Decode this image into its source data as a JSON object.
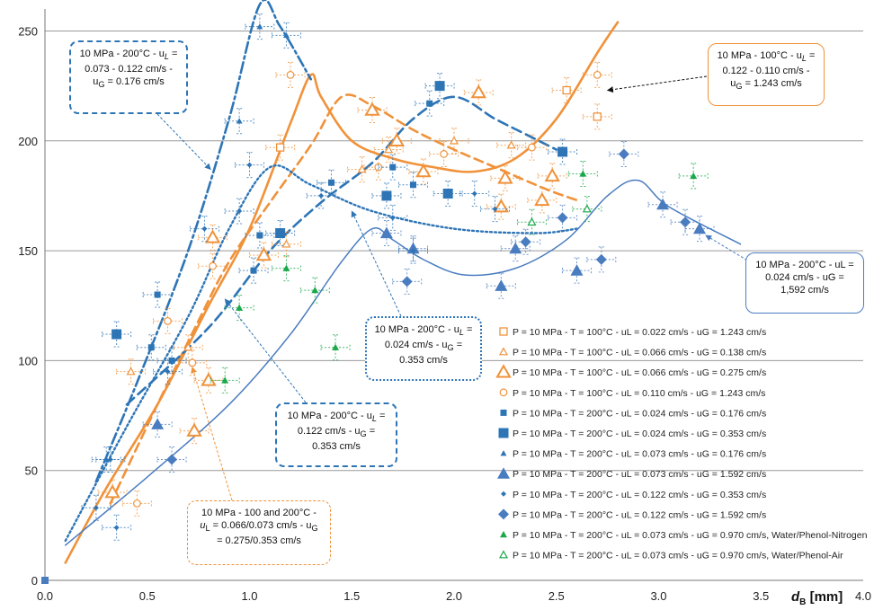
{
  "chart_data": {
    "type": "scatter",
    "xlabel": "d_B [mm]",
    "xlabel_main": "d",
    "xlabel_sub": "B",
    "xlabel_unit": " [mm]",
    "xlim": [
      0,
      4.0
    ],
    "ylim": [
      0,
      260
    ],
    "x_ticks": [
      "0.0",
      "0.5",
      "1.0",
      "1.5",
      "2.0",
      "2.5",
      "3.0",
      "3.5",
      "4.0"
    ],
    "y_ticks": [
      "0",
      "50",
      "100",
      "150",
      "200",
      "250"
    ],
    "grid": "horizontal",
    "legend_position": "right",
    "colors": {
      "orange": "#f0923a",
      "blue": "#2e75b6",
      "green": "#1aa84a",
      "mid_blue": "#4a7cc0"
    },
    "series": [
      {
        "name": "P = 10 MPa - T = 100°C - uL = 0.022 cm/s - uG = 1.243 cm/s",
        "marker": "square-open",
        "color": "#f0923a",
        "x": [
          1.15,
          2.55,
          2.7
        ],
        "y": [
          197,
          223,
          211
        ]
      },
      {
        "name": "P = 10 MPa - T = 100°C - uL = 0.066 cm/s - uG = 0.138 cm/s",
        "marker": "triangle-open-small",
        "color": "#f0923a",
        "x": [
          0.42,
          0.7,
          1.18,
          1.55,
          1.68,
          2.0,
          2.28
        ],
        "y": [
          95,
          106,
          153,
          187,
          196,
          200,
          198
        ]
      },
      {
        "name": "P = 10 MPa - T = 100°C - uL = 0.066 cm/s - uG = 0.275 cm/s",
        "marker": "triangle-open-large",
        "color": "#f0923a",
        "x": [
          0.33,
          0.73,
          0.8,
          0.82,
          1.07,
          1.6,
          1.72,
          1.85,
          2.12,
          2.23,
          2.25,
          2.43,
          2.48
        ],
        "y": [
          40,
          68,
          91,
          156,
          148,
          214,
          200,
          186,
          222,
          170,
          183,
          173,
          184
        ]
      },
      {
        "name": "P = 10 MPa - T = 100°C - uL = 0.110 cm/s - uG = 1.243 cm/s",
        "marker": "circle-open",
        "color": "#f0923a",
        "x": [
          0.45,
          0.6,
          0.72,
          0.82,
          1.2,
          1.63,
          1.95,
          2.38,
          2.7
        ],
        "y": [
          35,
          118,
          99,
          143,
          230,
          188,
          194,
          197,
          230
        ]
      },
      {
        "name": "P = 10 MPa - T = 200°C - uL = 0.024 cm/s - uG = 0.176 cm/s",
        "marker": "square-filled-small",
        "color": "#2e75b6",
        "x": [
          0.52,
          0.55,
          0.62,
          1.02,
          1.05,
          1.4,
          1.7,
          1.8,
          1.88
        ],
        "y": [
          106,
          130,
          100,
          141,
          157,
          181,
          188,
          180,
          217
        ]
      },
      {
        "name": "P = 10 MPa - T = 200°C - uL = 0.024 cm/s - uG = 0.353 cm/s",
        "marker": "square-filled-large",
        "color": "#2e75b6",
        "x": [
          0.35,
          1.15,
          1.67,
          1.93,
          1.97,
          2.53
        ],
        "y": [
          112,
          158,
          175,
          225,
          176,
          195
        ]
      },
      {
        "name": "P = 10 MPa - T = 200°C - uL = 0.073 cm/s - uG = 0.176 cm/s",
        "marker": "triangle-filled-small",
        "color": "#2e75b6",
        "x": [
          0.3,
          0.95,
          1.05,
          1.18
        ],
        "y": [
          55,
          209,
          252,
          248
        ]
      },
      {
        "name": "P = 10 MPa - T = 200°C - uL = 0.073 cm/s - uG = 1.592 cm/s",
        "marker": "triangle-filled-large",
        "color": "#4a7cc0",
        "x": [
          0.55,
          1.67,
          1.8,
          2.23,
          2.3,
          2.6,
          3.02,
          3.2
        ],
        "y": [
          71,
          158,
          151,
          134,
          151,
          141,
          171,
          160
        ]
      },
      {
        "name": "P = 10 MPa - T = 200°C - uL = 0.122 cm/s - uG = 0.353 cm/s",
        "marker": "diamond-small",
        "color": "#2e75b6",
        "x": [
          0.25,
          0.32,
          0.35,
          0.6,
          0.78,
          0.95,
          1.0,
          1.35,
          1.7,
          1.8,
          2.1,
          2.2
        ],
        "y": [
          33,
          55,
          24,
          95,
          160,
          168,
          189,
          175,
          165,
          150,
          176,
          169
        ]
      },
      {
        "name": "P = 10 MPa - T = 200°C - uL = 0.122 cm/s - uG = 1.592 cm/s",
        "marker": "diamond-large",
        "color": "#4a7cc0",
        "x": [
          0.62,
          1.77,
          2.35,
          2.53,
          2.72,
          2.83,
          3.13
        ],
        "y": [
          55,
          136,
          154,
          165,
          146,
          194,
          163
        ]
      },
      {
        "name": "P = 10 MPa - T = 200°C - uL = 0.073 cm/s - uG = 0.970 cm/s, Water/Phenol-Nitrogen",
        "marker": "triangle-filled-green",
        "color": "#1aa84a",
        "x": [
          0.88,
          0.95,
          1.18,
          1.32,
          1.42,
          2.63,
          3.17
        ],
        "y": [
          91,
          124,
          142,
          132,
          106,
          185,
          184
        ]
      },
      {
        "name": "P = 10 MPa - T = 200°C - uL = 0.073 cm/s - uG = 0.970 cm/s, Water/Phenol-Air",
        "marker": "triangle-open-green",
        "color": "#1aa84a",
        "x": [
          2.38,
          2.65
        ],
        "y": [
          163,
          169
        ]
      }
    ],
    "origin_point": {
      "x": 0.0,
      "y": 0
    },
    "curves": [
      {
        "name": "orange-solid",
        "color": "#f0923a",
        "width": 2.6,
        "dash": "",
        "points": [
          [
            0.1,
            8
          ],
          [
            0.3,
            42
          ],
          [
            0.55,
            80
          ],
          [
            0.8,
            125
          ],
          [
            1.0,
            160
          ],
          [
            1.2,
            208
          ],
          [
            1.3,
            230
          ],
          [
            1.35,
            220
          ],
          [
            1.5,
            200
          ],
          [
            1.7,
            192
          ],
          [
            1.9,
            188
          ],
          [
            2.1,
            186
          ],
          [
            2.3,
            192
          ],
          [
            2.5,
            210
          ],
          [
            2.7,
            240
          ],
          [
            2.8,
            254
          ]
        ]
      },
      {
        "name": "orange-dashed",
        "color": "#f0923a",
        "width": 2.6,
        "dash": "10 6",
        "points": [
          [
            0.32,
            35
          ],
          [
            0.55,
            80
          ],
          [
            0.75,
            118
          ],
          [
            0.9,
            145
          ],
          [
            1.1,
            172
          ],
          [
            1.3,
            198
          ],
          [
            1.45,
            220
          ],
          [
            1.6,
            216
          ],
          [
            1.8,
            205
          ],
          [
            2.0,
            196
          ],
          [
            2.2,
            188
          ],
          [
            2.45,
            178
          ],
          [
            2.6,
            173
          ]
        ]
      },
      {
        "name": "blue-dashed",
        "color": "#2e75b6",
        "width": 2.6,
        "dash": "11 6",
        "points": [
          [
            0.4,
            80
          ],
          [
            0.8,
            115
          ],
          [
            1.1,
            150
          ],
          [
            1.35,
            172
          ],
          [
            1.6,
            190
          ],
          [
            1.8,
            210
          ],
          [
            2.0,
            220
          ],
          [
            2.2,
            210
          ],
          [
            2.35,
            203
          ],
          [
            2.5,
            196
          ]
        ]
      },
      {
        "name": "blue-dashdot",
        "color": "#2e75b6",
        "width": 2.6,
        "dash": "12 4 3 4",
        "points": [
          [
            0.25,
            45
          ],
          [
            0.45,
            90
          ],
          [
            0.7,
            150
          ],
          [
            0.9,
            210
          ],
          [
            1.05,
            262
          ],
          [
            1.15,
            252
          ],
          [
            1.3,
            228
          ]
        ]
      },
      {
        "name": "blue-dotted",
        "color": "#2e75b6",
        "width": 2.4,
        "dash": "2 3",
        "points": [
          [
            0.1,
            18
          ],
          [
            0.4,
            70
          ],
          [
            0.7,
            120
          ],
          [
            0.9,
            160
          ],
          [
            1.1,
            188
          ],
          [
            1.3,
            180
          ],
          [
            1.6,
            168
          ],
          [
            2.0,
            160
          ],
          [
            2.4,
            158
          ],
          [
            2.6,
            160
          ]
        ]
      },
      {
        "name": "blue-solid-thin",
        "color": "#4a7cc0",
        "width": 1.5,
        "dash": "",
        "points": [
          [
            0.1,
            16
          ],
          [
            0.5,
            47
          ],
          [
            0.9,
            80
          ],
          [
            1.2,
            112
          ],
          [
            1.45,
            145
          ],
          [
            1.6,
            160
          ],
          [
            1.7,
            155
          ],
          [
            1.85,
            146
          ],
          [
            2.05,
            139
          ],
          [
            2.3,
            142
          ],
          [
            2.55,
            155
          ],
          [
            2.75,
            175
          ],
          [
            2.9,
            182
          ],
          [
            3.05,
            170
          ],
          [
            3.4,
            153
          ]
        ]
      }
    ],
    "annotations": [
      {
        "lines": [
          "10 MPa - 200°C - u_L =",
          "0.073 - 0.122 cm/s -",
          "u_G = 0.176 cm/s"
        ],
        "color": "#2e75b6",
        "arrow_to": [
          0.81,
          187
        ]
      },
      {
        "lines": [
          "10 MPa - 100°C - u_L =",
          "0.122 - 0.110 cm/s -",
          "u_G = 1.243 cm/s"
        ],
        "color": "#f0923a",
        "arrow_to": [
          2.75,
          223
        ]
      },
      {
        "lines": [
          "10 MPa - 200°C - u_L =",
          "0.024 cm/s - u_G =",
          "0.353 cm/s"
        ],
        "color": "#2e75b6",
        "arrow_to": [
          1.5,
          168
        ]
      },
      {
        "lines": [
          "10 MPa - 200°C - u_L =",
          "0.122 cm/s - u_G =",
          "0.353 cm/s"
        ],
        "color": "#2e75b6",
        "arrow_to": [
          0.88,
          128
        ]
      },
      {
        "lines": [
          "10 MPa - 100 and 200°C -",
          "u_L = 0.066/0.073 cm/s - u_G",
          "= 0.275/0.353 cm/s"
        ],
        "color": "#f0923a",
        "arrow_to": [
          0.72,
          97
        ]
      },
      {
        "lines": [
          "10 MPa - 200°C - uL =",
          "0.024 cm/s - uG =",
          "1,592 cm/s"
        ],
        "color": "#4a7cc0",
        "arrow_to": [
          3.23,
          157
        ]
      }
    ]
  },
  "annotation_text": {
    "a1": {
      "l1": "10 MPa -  200°C - u",
      "l1sub": "L",
      "l1end": " =",
      "l2": "0.073 - 0.122 cm/s -",
      "l3": "u",
      "l3sub": "G",
      "l3end": " = 0.176 cm/s"
    },
    "a2": {
      "l1": "10 MPa - 100°C - u",
      "l1sub": "L",
      "l1end": " =",
      "l2": "0.122 - 0.110 cm/s -",
      "l3": "u",
      "l3sub": "G",
      "l3end": " = 1.243 cm/s"
    },
    "a3": {
      "l1": "10 MPa - 200°C - u",
      "l1sub": "L",
      "l1end": " =",
      "l2": "0.024 cm/s - u",
      "l2sub": "G",
      "l2end": " =",
      "l3": "0.353 cm/s"
    },
    "a4": {
      "l1": "10 MPa - 200°C - u",
      "l1sub": "L",
      "l1end": " =",
      "l2": "0.122 cm/s - u",
      "l2sub": "G",
      "l2end": " =",
      "l3": "0.353 cm/s"
    },
    "a5": {
      "l1": "10 MPa - 100 and 200°C -",
      "l2": "u",
      "l2sub": "L",
      "l2end": " = 0.066/0.073 cm/s - u",
      "l2sub2": "G",
      "l3": "= 0.275/0.353 cm/s"
    },
    "a6": {
      "l1": "10 MPa - 200°C - uL =",
      "l2": "0.024 cm/s - uG =",
      "l3": "1,592 cm/s"
    }
  }
}
